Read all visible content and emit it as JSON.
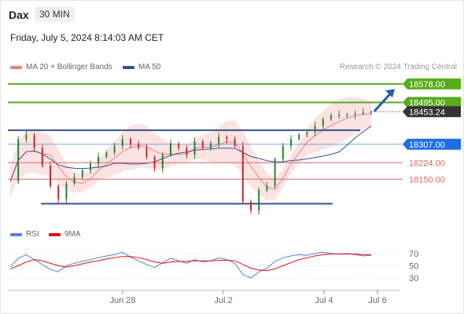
{
  "header": {
    "instrument": "Dax",
    "timeframe": "30 MIN",
    "datetime": "Friday, July 5, 2024 8:14:03 AM CET"
  },
  "legend": {
    "ma20": "MA 20 + Bollinger Bands",
    "ma50": "MA 50",
    "credit": "Research © 2024 Trading Central",
    "rsi": "RSI",
    "ma9": "9MA"
  },
  "colors": {
    "ma20": "#f07f7f",
    "bollinger_fill": "#fbd9d9",
    "ma50": "#34528c",
    "resistance": "#5aab1e",
    "support": "#e06666",
    "current": "#333333",
    "pivot": "#1e6ee6",
    "trend_line": "#34528c",
    "arrow": "#2a5ba8",
    "rsi": "#5b7fd6",
    "rsi_ma": "#e01010"
  },
  "chart_data": [
    {
      "type": "candlestick",
      "x_ticks": [
        "Jun 28",
        "Jul 2",
        "Jul 4",
        "Jul 6"
      ],
      "y_range": [
        17950,
        18620
      ],
      "levels": [
        {
          "label": "18578.00",
          "value": 18578.0,
          "kind": "resistance"
        },
        {
          "label": "18495.00",
          "value": 18495.0,
          "kind": "resistance"
        },
        {
          "label": "18453.24",
          "value": 18453.24,
          "kind": "current"
        },
        {
          "label": "18307.00",
          "value": 18307.0,
          "kind": "pivot"
        },
        {
          "label": "18224.00",
          "value": 18224.0,
          "kind": "support"
        },
        {
          "label": "18150.00",
          "value": 18150.0,
          "kind": "support"
        }
      ],
      "trend_lines": [
        {
          "name": "upper-horizontal",
          "value": 18370
        },
        {
          "name": "lower-horizontal",
          "value": 18040
        }
      ],
      "projection": {
        "from": 18455,
        "to": 18555
      },
      "close_path": [
        18140,
        18330,
        18350,
        18290,
        18210,
        18120,
        18060,
        18130,
        18160,
        18190,
        18220,
        18250,
        18270,
        18300,
        18330,
        18310,
        18290,
        18250,
        18200,
        18260,
        18310,
        18290,
        18260,
        18320,
        18290,
        18310,
        18340,
        18330,
        18300,
        18050,
        18010,
        18100,
        18120,
        18240,
        18300,
        18330,
        18350,
        18360,
        18390,
        18420,
        18435,
        18440,
        18440,
        18445,
        18450,
        18453
      ]
    },
    {
      "type": "line",
      "title": "RSI",
      "y_ticks": [
        70,
        50,
        30
      ],
      "series": [
        {
          "name": "RSI",
          "values": [
            48,
            62,
            68,
            60,
            52,
            44,
            40,
            50,
            54,
            57,
            60,
            63,
            66,
            68,
            72,
            64,
            58,
            52,
            47,
            55,
            62,
            58,
            54,
            60,
            56,
            58,
            63,
            60,
            54,
            36,
            30,
            40,
            46,
            57,
            63,
            66,
            68,
            67,
            70,
            72,
            70,
            69,
            70,
            68,
            66,
            67
          ]
        },
        {
          "name": "9MA",
          "values": [
            45,
            50,
            56,
            60,
            58,
            54,
            50,
            48,
            50,
            53,
            56,
            58,
            61,
            63,
            65,
            65,
            63,
            60,
            56,
            54,
            56,
            57,
            57,
            58,
            58,
            58,
            59,
            59,
            58,
            52,
            46,
            43,
            42,
            45,
            50,
            55,
            60,
            63,
            66,
            68,
            69,
            69,
            69,
            69,
            68,
            68
          ]
        }
      ]
    }
  ]
}
